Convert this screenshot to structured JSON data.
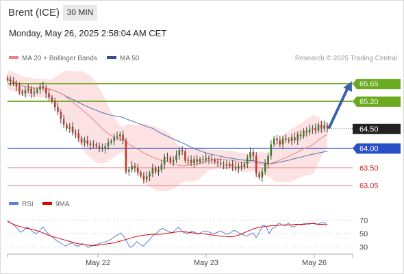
{
  "header": {
    "instrument": "Brent (ICE)",
    "timeframe": "30 MIN",
    "datetime": "Monday, May 26, 2025 2:58:04 AM CET"
  },
  "legend": {
    "ma20": "MA 20 + Bollinger Bands",
    "ma50": "MA 50",
    "rsi": "RSI",
    "rsi_ma": "9MA"
  },
  "credit": "Research © 2025 Trading Central",
  "colors": {
    "up": "#3a7d2c",
    "down": "#c0392b",
    "wick": "#3b3b3b",
    "ma20": "#f08080",
    "ma50": "#4a6fb5",
    "band": "#fbd8d8",
    "resistance": "#6aaa1f",
    "pivot": "#2a50c8",
    "support": "#f09090",
    "current": "#222222",
    "arrow": "#3a62a6",
    "rsi": "#5a7fd8",
    "rsi_ma": "#e00000"
  },
  "chart_data": [
    {
      "type": "candlestick",
      "title": "Brent (ICE)",
      "timeframe": "30 MIN",
      "x_tick_labels": [
        "May 22",
        "May 23",
        "May 26"
      ],
      "ylim": [
        62.85,
        65.95
      ],
      "levels": [
        {
          "label": "65.65",
          "value": 65.65,
          "kind": "resistance"
        },
        {
          "label": "65.20",
          "value": 65.2,
          "kind": "resistance"
        },
        {
          "label": "64.50",
          "value": 64.5,
          "kind": "current"
        },
        {
          "label": "64.00",
          "value": 64.0,
          "kind": "pivot"
        },
        {
          "label": "63.50",
          "value": 63.5,
          "kind": "support"
        },
        {
          "label": "63.05",
          "value": 63.05,
          "kind": "support"
        }
      ],
      "current_price": 64.5,
      "target": 65.65,
      "close_series": [
        65.75,
        65.7,
        65.66,
        65.58,
        65.45,
        65.4,
        65.48,
        65.52,
        65.4,
        65.44,
        65.5,
        65.58,
        65.54,
        65.4,
        65.3,
        65.2,
        65.05,
        64.92,
        64.75,
        64.6,
        64.5,
        64.55,
        64.4,
        64.38,
        64.25,
        64.15,
        64.2,
        64.12,
        64.08,
        64.1,
        64.05,
        64.0,
        63.98,
        64.05,
        64.15,
        64.18,
        64.28,
        64.3,
        64.35,
        64.2,
        63.4,
        63.45,
        63.55,
        63.5,
        63.38,
        63.3,
        63.2,
        63.28,
        63.35,
        63.5,
        63.4,
        63.45,
        63.58,
        63.78,
        63.75,
        63.65,
        63.7,
        63.82,
        63.95,
        63.92,
        63.68,
        63.7,
        63.62,
        63.72,
        63.65,
        63.72,
        63.7,
        63.75,
        63.72,
        63.7,
        63.65,
        63.62,
        63.6,
        63.58,
        63.55,
        63.6,
        63.52,
        63.48,
        63.55,
        63.52,
        63.6,
        63.75,
        63.9,
        63.8,
        63.35,
        63.25,
        63.4,
        63.6,
        63.8,
        64.1,
        64.25,
        64.2,
        64.1,
        64.25,
        64.22,
        64.18,
        64.28,
        64.2,
        64.35,
        64.3,
        64.45,
        64.4,
        64.48,
        64.52,
        64.45,
        64.6,
        64.5,
        64.58,
        64.52
      ]
    },
    {
      "type": "line",
      "title": "RSI",
      "ylim": [
        20,
        80
      ],
      "y_tick_labels": [
        "70",
        "50",
        "30"
      ],
      "y_ticks": [
        70,
        50,
        30
      ],
      "series": [
        {
          "name": "RSI",
          "values": [
            70,
            66,
            63,
            58,
            52,
            55,
            60,
            57,
            52,
            50,
            55,
            60,
            53,
            48,
            44,
            40,
            37,
            34,
            31,
            34,
            36,
            32,
            31,
            35,
            33,
            29,
            31,
            33,
            34,
            36,
            37,
            39,
            41,
            45,
            48,
            51,
            46,
            37,
            29,
            32,
            38,
            34,
            31,
            36,
            41,
            47,
            50,
            55,
            58,
            55,
            53,
            51,
            56,
            60,
            53,
            51,
            50,
            54,
            52,
            49,
            52,
            54,
            53,
            51,
            50,
            52,
            54,
            51,
            49,
            51,
            55,
            53,
            50,
            48,
            46,
            49,
            51,
            44,
            52,
            63,
            61,
            50,
            58,
            60,
            66,
            63,
            62,
            66,
            60,
            61,
            64,
            63,
            66,
            64,
            65,
            66,
            64,
            66,
            67,
            63
          ]
        },
        {
          "name": "9MA",
          "values": [
            68,
            65,
            62,
            60,
            58,
            57,
            55,
            53,
            50,
            47,
            45,
            43,
            41,
            39,
            37,
            35,
            34,
            33,
            32,
            32,
            33,
            34,
            35,
            36,
            38,
            40,
            42,
            44,
            46,
            47,
            48,
            49,
            49,
            49,
            50,
            51,
            52,
            53,
            53,
            52,
            51,
            50,
            50,
            49,
            48,
            47,
            46,
            46,
            45,
            46,
            48,
            51,
            54,
            57,
            59,
            60,
            61,
            62,
            62,
            63,
            63,
            63,
            64,
            64,
            64,
            65,
            65,
            64,
            64,
            63
          ]
        }
      ]
    }
  ]
}
